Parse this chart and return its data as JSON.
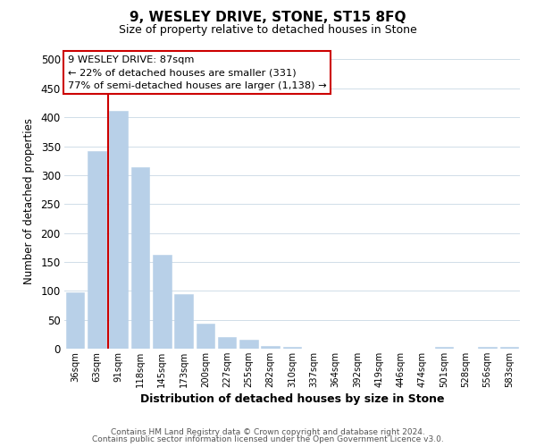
{
  "title": "9, WESLEY DRIVE, STONE, ST15 8FQ",
  "subtitle": "Size of property relative to detached houses in Stone",
  "xlabel": "Distribution of detached houses by size in Stone",
  "ylabel": "Number of detached properties",
  "bar_color": "#b8d0e8",
  "bar_edge_color": "#b8d0e8",
  "categories": [
    "36sqm",
    "63sqm",
    "91sqm",
    "118sqm",
    "145sqm",
    "173sqm",
    "200sqm",
    "227sqm",
    "255sqm",
    "282sqm",
    "310sqm",
    "337sqm",
    "364sqm",
    "392sqm",
    "419sqm",
    "446sqm",
    "474sqm",
    "501sqm",
    "528sqm",
    "556sqm",
    "583sqm"
  ],
  "values": [
    97,
    341,
    411,
    313,
    162,
    95,
    43,
    20,
    15,
    5,
    3,
    0,
    0,
    0,
    0,
    0,
    0,
    3,
    0,
    3,
    3
  ],
  "ylim": [
    0,
    510
  ],
  "yticks": [
    0,
    50,
    100,
    150,
    200,
    250,
    300,
    350,
    400,
    450,
    500
  ],
  "vline_color": "#cc0000",
  "vline_x_index": 1.5,
  "annotation_title": "9 WESLEY DRIVE: 87sqm",
  "annotation_line1": "← 22% of detached houses are smaller (331)",
  "annotation_line2": "77% of semi-detached houses are larger (1,138) →",
  "annotation_box_color": "#ffffff",
  "annotation_box_edge": "#cc0000",
  "footer1": "Contains HM Land Registry data © Crown copyright and database right 2024.",
  "footer2": "Contains public sector information licensed under the Open Government Licence v3.0.",
  "background_color": "#ffffff",
  "grid_color": "#d0dde8"
}
